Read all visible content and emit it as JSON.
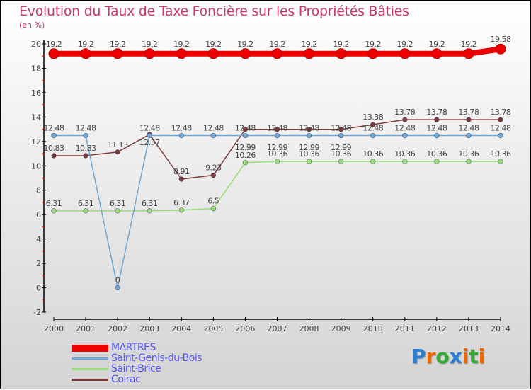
{
  "chart_data": {
    "type": "line",
    "title": "Evolution du Taux de Taxe Foncière sur les Propriétés Bâties",
    "ylabel": "(en %)",
    "xlabel": "",
    "ylim": [
      -2,
      20
    ],
    "yticks": [
      "-2",
      "0",
      "2",
      "4",
      "6",
      "8",
      "10",
      "12",
      "14",
      "16",
      "18",
      "20"
    ],
    "categories": [
      "2000",
      "2001",
      "2002",
      "2003",
      "2004",
      "2005",
      "2006",
      "2007",
      "2008",
      "2009",
      "2010",
      "2011",
      "2012",
      "2013",
      "2014"
    ],
    "series": [
      {
        "name": "MARTRES",
        "color": "#ee0000",
        "values": [
          19.2,
          19.2,
          19.2,
          19.2,
          19.2,
          19.2,
          19.2,
          19.2,
          19.2,
          19.2,
          19.2,
          19.2,
          19.2,
          19.2,
          19.58
        ]
      },
      {
        "name": "Saint-Genis-du-Bois",
        "color": "#6fa8d4",
        "values": [
          12.48,
          12.48,
          0,
          12.48,
          12.48,
          12.48,
          12.48,
          12.48,
          12.48,
          12.48,
          12.48,
          12.48,
          12.48,
          12.48,
          12.48
        ]
      },
      {
        "name": "Saint-Brice",
        "color": "#99dd77",
        "values": [
          6.31,
          6.31,
          6.31,
          6.31,
          6.37,
          6.5,
          10.26,
          10.36,
          10.36,
          10.36,
          10.36,
          10.36,
          10.36,
          10.36,
          10.36
        ]
      },
      {
        "name": "Coirac",
        "color": "#7a3a3a",
        "values": [
          10.83,
          10.83,
          11.13,
          12.57,
          8.91,
          9.23,
          12.99,
          12.99,
          12.99,
          12.99,
          13.38,
          13.78,
          13.78,
          13.78,
          13.78
        ]
      }
    ],
    "legend": "bottom-left",
    "grid": false
  },
  "logo": "Proxiti"
}
